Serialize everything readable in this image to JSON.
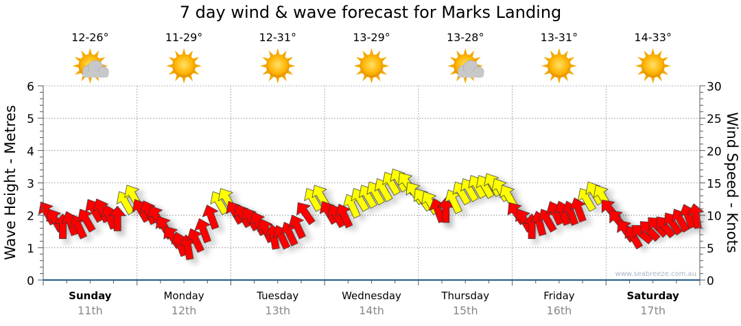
{
  "chart_data": {
    "type": "scatter",
    "title": "7 day wind & wave forecast for Marks Landing",
    "ylabel_left": "Wave Height - Metres",
    "ylabel_right": "Wind Speed - Knots",
    "ylim_left": [
      0,
      6
    ],
    "ylim_right": [
      0,
      30
    ],
    "left_ticks": [
      "0",
      "1",
      "2",
      "3",
      "4",
      "5",
      "6"
    ],
    "right_ticks": [
      "0",
      "5",
      "10",
      "15",
      "20",
      "25",
      "30"
    ],
    "grid": true,
    "days": [
      {
        "name": "Sunday",
        "date": "11th",
        "temp": "12-26°",
        "icon": "partly-cloudy-icon",
        "bold": true
      },
      {
        "name": "Monday",
        "date": "12th",
        "temp": "11-29°",
        "icon": "sun-icon",
        "bold": false
      },
      {
        "name": "Tuesday",
        "date": "13th",
        "temp": "12-31°",
        "icon": "sun-icon",
        "bold": false
      },
      {
        "name": "Wednesday",
        "date": "14th",
        "temp": "13-29°",
        "icon": "sun-icon",
        "bold": false
      },
      {
        "name": "Thursday",
        "date": "15th",
        "temp": "13-28°",
        "icon": "partly-cloudy-icon",
        "bold": false
      },
      {
        "name": "Friday",
        "date": "16th",
        "temp": "13-31°",
        "icon": "sun-icon",
        "bold": false
      },
      {
        "name": "Saturday",
        "date": "17th",
        "temp": "14-33°",
        "icon": "sun-icon",
        "bold": true
      }
    ],
    "wind_speed_knots": [
      10.4,
      9.3,
      8.3,
      8.8,
      8.3,
      9.3,
      10.8,
      10.8,
      9.8,
      9.5,
      12,
      13,
      10.8,
      10.5,
      9.8,
      8.2,
      6.7,
      5.6,
      5.1,
      6.2,
      7.7,
      9.8,
      12,
      12.5,
      10.5,
      10,
      9.5,
      8.8,
      7.7,
      6.7,
      6.7,
      7.2,
      8.3,
      10.4,
      12.5,
      13,
      10.5,
      10,
      10,
      11.5,
      12.5,
      13,
      13.5,
      14,
      15,
      15.5,
      15,
      13.5,
      12.5,
      12,
      10.8,
      10.8,
      12.2,
      13.5,
      14,
      14.5,
      14.5,
      14.8,
      14,
      13,
      10.4,
      9.3,
      8.3,
      8.8,
      9.3,
      10.4,
      10.4,
      10.4,
      10.9,
      12.5,
      13.5,
      13,
      10.9,
      9.3,
      7.7,
      6.7,
      7.2,
      7.7,
      8.3,
      8.3,
      8.8,
      9.3,
      9.9,
      9.9
    ],
    "wind_direction_deg": [
      -30,
      -30,
      0,
      -20,
      -25,
      -30,
      -30,
      -25,
      -20,
      0,
      -30,
      -30,
      -30,
      -25,
      -30,
      -30,
      -35,
      -20,
      -10,
      -25,
      -20,
      -20,
      -30,
      -30,
      -30,
      -30,
      -30,
      -25,
      -25,
      -10,
      -25,
      -25,
      -25,
      -35,
      -30,
      -30,
      -30,
      -30,
      -25,
      -25,
      -30,
      -30,
      -30,
      -30,
      -30,
      -30,
      -35,
      -35,
      -35,
      -30,
      -20,
      0,
      -25,
      -30,
      -30,
      -30,
      -30,
      -30,
      -30,
      -30,
      -35,
      -30,
      0,
      -15,
      -30,
      -25,
      -20,
      -20,
      -20,
      -30,
      -30,
      -30,
      -40,
      -40,
      -35,
      -30,
      -50,
      -45,
      -45,
      -40,
      -35,
      -30,
      -20,
      -10
    ],
    "color_threshold_knots": 11.5,
    "colors": {
      "strong": "#ffff00",
      "light": "#ff0000",
      "grid": "#999999",
      "axis": "#1f5a8a"
    },
    "watermark": "www.seabreeze.com.au"
  }
}
